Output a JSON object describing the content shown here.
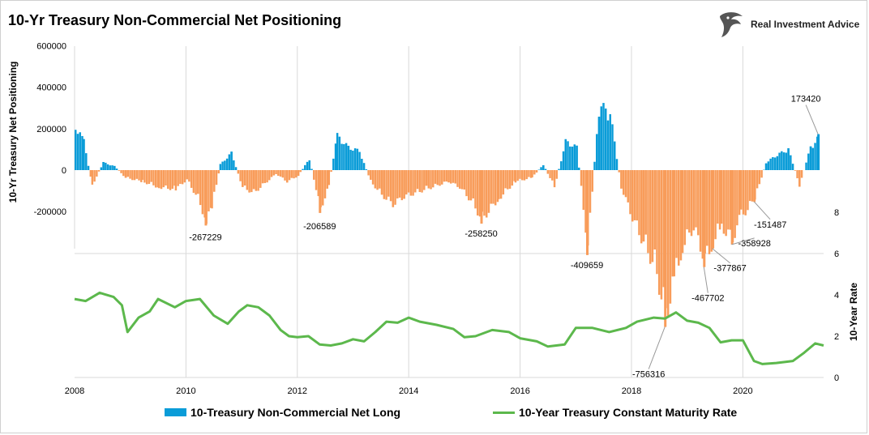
{
  "title": "10-Yr Treasury Non-Commercial Net Positioning",
  "brand": {
    "name": "Real Investment Advice",
    "logo_icon": "eagle-head-logo-icon"
  },
  "colors": {
    "long": "#0a9cd8",
    "short": "#f89c5a",
    "rate": "#5cb84c",
    "grid": "#d9d9d9"
  },
  "chart_data": {
    "type": "bar",
    "x_ticks": [
      "2008",
      "2010",
      "2012",
      "2014",
      "2016",
      "2018",
      "2020"
    ],
    "left_axis": {
      "label": "10-Yr Treasury Net Positioning",
      "ticks": [
        "600000",
        "400000",
        "200000",
        "0",
        "-200000"
      ],
      "ylim": [
        -800000,
        600000
      ]
    },
    "right_axis": {
      "label": "10-Year Rate",
      "ticks": [
        "8",
        "6",
        "4",
        "2",
        "0"
      ],
      "ylim": [
        0,
        8
      ]
    },
    "series": [
      {
        "name": "10-Treasury Non-Commercial Net Long",
        "type": "bar",
        "x": [
          2008.0,
          2008.15,
          2008.3,
          2008.5,
          2008.7,
          2008.9,
          2009.2,
          2009.5,
          2009.8,
          2010.0,
          2010.2,
          2010.35,
          2010.45,
          2010.6,
          2010.8,
          2011.0,
          2011.2,
          2011.4,
          2011.6,
          2011.8,
          2012.0,
          2012.2,
          2012.4,
          2012.55,
          2012.7,
          2012.9,
          2013.1,
          2013.3,
          2013.5,
          2013.7,
          2013.9,
          2014.1,
          2014.3,
          2014.5,
          2014.7,
          2014.9,
          2015.1,
          2015.3,
          2015.6,
          2015.9,
          2016.2,
          2016.4,
          2016.6,
          2016.8,
          2017.0,
          2017.2,
          2017.4,
          2017.6,
          2017.8,
          2018.0,
          2018.2,
          2018.4,
          2018.6,
          2018.75,
          2018.9,
          2019.1,
          2019.3,
          2019.45,
          2019.6,
          2019.8,
          2019.95,
          2020.2,
          2020.4,
          2020.6,
          2020.8,
          2021.0,
          2021.2,
          2021.35
        ],
        "values": [
          230000,
          150000,
          -80000,
          40000,
          20000,
          -40000,
          -60000,
          -90000,
          -100000,
          -50000,
          -150000,
          -267229,
          -200000,
          30000,
          90000,
          -90000,
          -120000,
          -70000,
          -20000,
          -60000,
          -30000,
          60000,
          -206589,
          -80000,
          180000,
          120000,
          100000,
          -60000,
          -130000,
          -180000,
          -140000,
          -120000,
          -100000,
          -80000,
          -60000,
          -90000,
          -160000,
          -258250,
          -150000,
          -60000,
          -40000,
          30000,
          -90000,
          150000,
          120000,
          -409659,
          340000,
          300000,
          -90000,
          -250000,
          -380000,
          -500000,
          -756316,
          -580000,
          -400000,
          -300000,
          -467702,
          -377867,
          -300000,
          -358928,
          -250000,
          -151487,
          40000,
          80000,
          110000,
          -80000,
          120000,
          173420
        ]
      },
      {
        "name": "10-Year Treasury Constant Maturity Rate",
        "type": "line",
        "x": [
          2008.0,
          2008.2,
          2008.45,
          2008.7,
          2008.85,
          2008.95,
          2009.15,
          2009.35,
          2009.5,
          2009.8,
          2010.0,
          2010.25,
          2010.5,
          2010.75,
          2010.95,
          2011.1,
          2011.3,
          2011.5,
          2011.7,
          2011.85,
          2012.0,
          2012.2,
          2012.4,
          2012.6,
          2012.8,
          2013.0,
          2013.2,
          2013.4,
          2013.6,
          2013.8,
          2014.0,
          2014.2,
          2014.5,
          2014.8,
          2015.0,
          2015.2,
          2015.5,
          2015.8,
          2016.0,
          2016.3,
          2016.5,
          2016.8,
          2017.0,
          2017.3,
          2017.6,
          2017.9,
          2018.1,
          2018.4,
          2018.6,
          2018.8,
          2019.0,
          2019.2,
          2019.4,
          2019.6,
          2019.8,
          2020.0,
          2020.2,
          2020.35,
          2020.6,
          2020.9,
          2021.1,
          2021.3,
          2021.45
        ],
        "values": [
          3.8,
          3.7,
          4.1,
          3.9,
          3.5,
          2.2,
          2.9,
          3.2,
          3.8,
          3.4,
          3.7,
          3.8,
          3.0,
          2.6,
          3.2,
          3.5,
          3.4,
          3.0,
          2.3,
          2.0,
          1.95,
          2.0,
          1.6,
          1.55,
          1.65,
          1.85,
          1.75,
          2.2,
          2.7,
          2.65,
          2.9,
          2.7,
          2.55,
          2.35,
          1.95,
          2.0,
          2.3,
          2.2,
          1.9,
          1.75,
          1.5,
          1.6,
          2.4,
          2.4,
          2.2,
          2.4,
          2.7,
          2.9,
          2.85,
          3.15,
          2.75,
          2.65,
          2.4,
          1.7,
          1.8,
          1.8,
          0.8,
          0.65,
          0.7,
          0.8,
          1.2,
          1.65,
          1.55
        ]
      }
    ],
    "annotations": [
      {
        "label": "-267229",
        "x": 2010.35,
        "value": -267229
      },
      {
        "label": "-206589",
        "x": 2012.4,
        "value": -206589
      },
      {
        "label": "-258250",
        "x": 2015.3,
        "value": -258250
      },
      {
        "label": "-409659",
        "x": 2017.2,
        "value": -409659
      },
      {
        "label": "-756316",
        "x": 2018.6,
        "value": -756316
      },
      {
        "label": "-467702",
        "x": 2019.3,
        "value": -467702
      },
      {
        "label": "-377867",
        "x": 2019.45,
        "value": -377867
      },
      {
        "label": "-358928",
        "x": 2019.8,
        "value": -358928
      },
      {
        "label": "-151487",
        "x": 2020.2,
        "value": -151487
      },
      {
        "label": "173420",
        "x": 2021.35,
        "value": 173420
      }
    ]
  }
}
